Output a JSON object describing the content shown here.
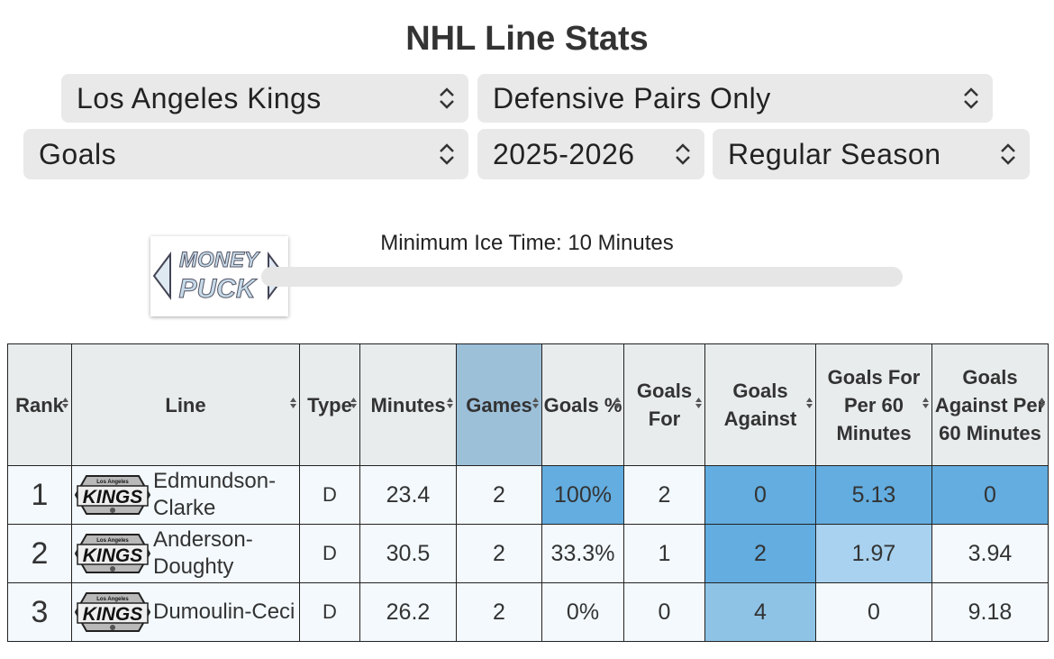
{
  "header": {
    "title": "NHL Line Stats"
  },
  "selects": [
    "Los Angeles Kings",
    "Defensive Pairs Only",
    "Goals",
    "2025-2026",
    "Regular Season"
  ],
  "slider": {
    "label": "Minimum Ice Time: 10 Minutes",
    "logo": [
      "MONEY",
      "PUCK"
    ]
  },
  "table": {
    "team_logo": {
      "small": "Los Angeles",
      "big": "KINGS"
    },
    "columns": [
      "Rank",
      "Line",
      "Type",
      "Minutes",
      "Games",
      "Goals %",
      "Goals For",
      "Goals Against",
      "Goals For Per 60 Minutes",
      "Goals Against Per 60 Minutes"
    ],
    "rows": [
      [
        "1",
        "Edmundson-Clarke",
        "D",
        "23.4",
        "2",
        "100%",
        "2",
        "0",
        "5.13",
        "0"
      ],
      [
        "2",
        "Anderson-Doughty",
        "D",
        "30.5",
        "2",
        "33.3%",
        "1",
        "2",
        "1.97",
        "3.94"
      ],
      [
        "3",
        "Dumoulin-Ceci",
        "D",
        "26.2",
        "2",
        "0%",
        "0",
        "4",
        "0",
        "9.18"
      ]
    ]
  }
}
